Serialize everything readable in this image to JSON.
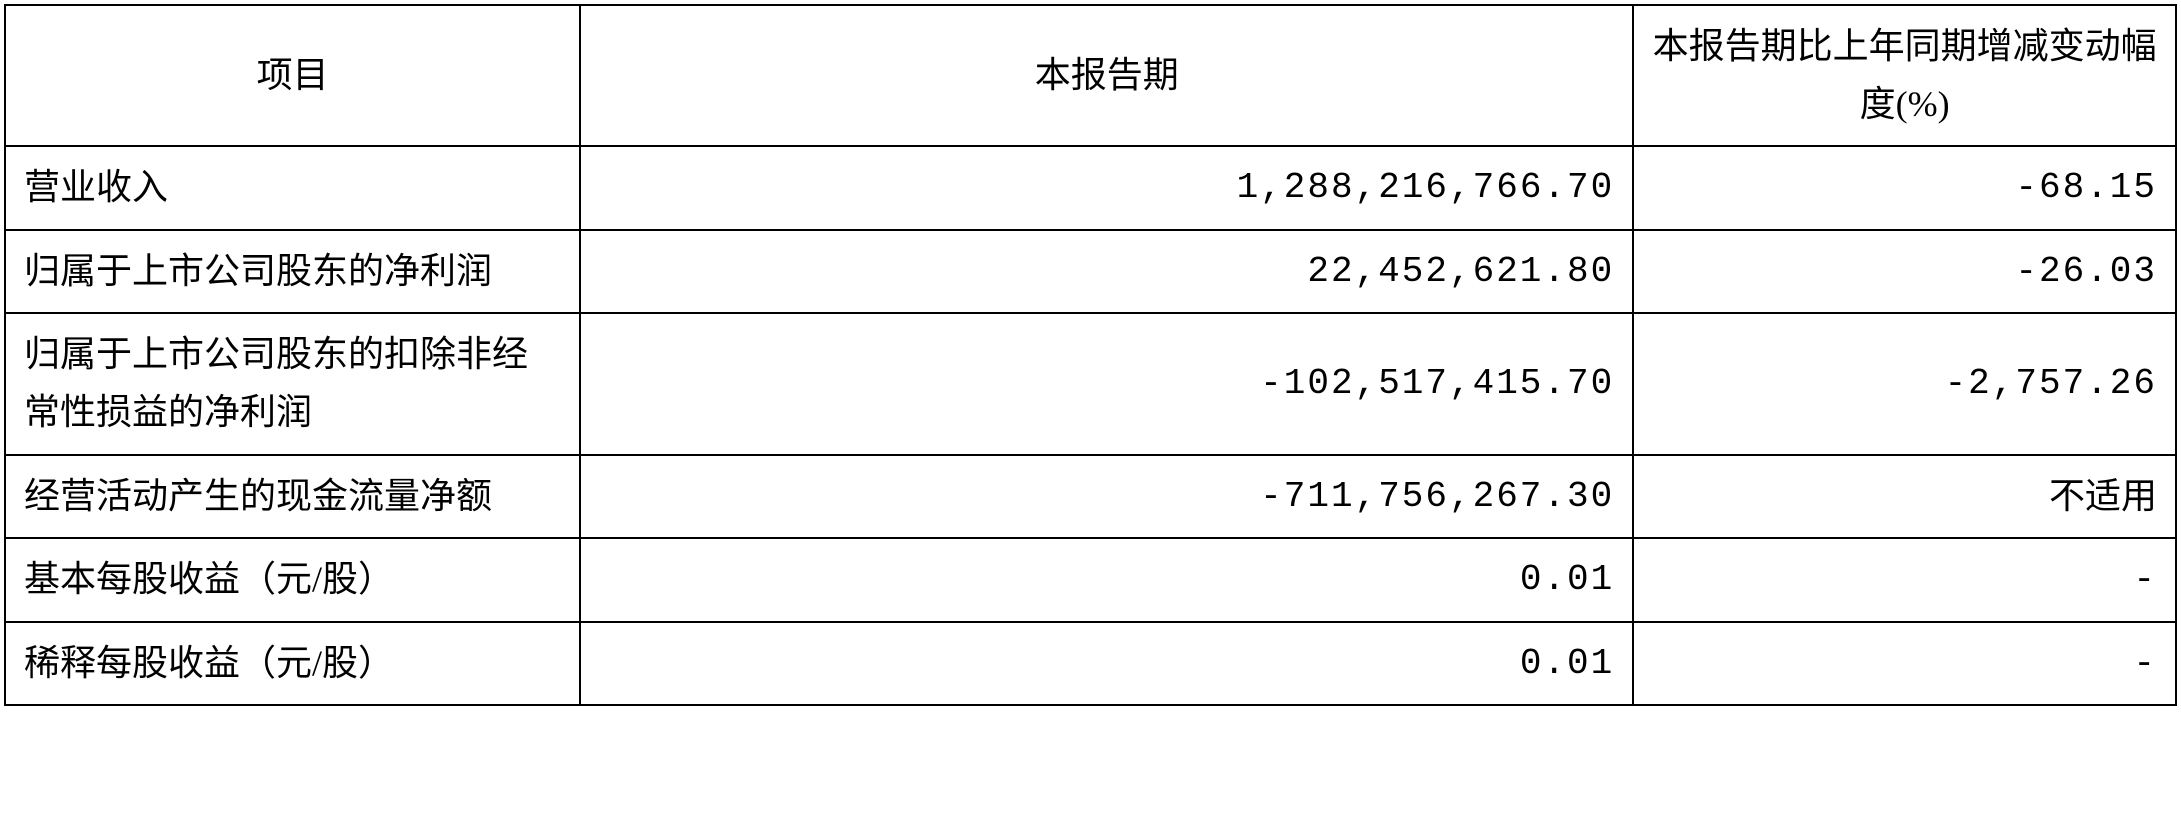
{
  "table": {
    "columns": [
      {
        "label": "项目",
        "class": "col-item",
        "align": "center"
      },
      {
        "label": "本报告期",
        "class": "col-period",
        "align": "center"
      },
      {
        "label": "本报告期比上年同期增减变动幅度(%)",
        "class": "col-change",
        "align": "center"
      }
    ],
    "rows": [
      {
        "label": "营业收入",
        "period": "1,288,216,766.70",
        "change": "-68.15",
        "change_is_numeric": true
      },
      {
        "label": "归属于上市公司股东的净利润",
        "period": "22,452,621.80",
        "change": "-26.03",
        "change_is_numeric": true
      },
      {
        "label": "归属于上市公司股东的扣除非经常性损益的净利润",
        "period": "-102,517,415.70",
        "change": "-2,757.26",
        "change_is_numeric": true
      },
      {
        "label": "经营活动产生的现金流量净额",
        "period": "-711,756,267.30",
        "change": "不适用",
        "change_is_numeric": false
      },
      {
        "label": "基本每股收益（元/股）",
        "period": "0.01",
        "change": "-",
        "change_is_numeric": true
      },
      {
        "label": "稀释每股收益（元/股）",
        "period": "0.01",
        "change": "-",
        "change_is_numeric": true
      }
    ],
    "styling": {
      "border_color": "#000000",
      "border_width": 2,
      "background_color": "#ffffff",
      "text_color": "#000000",
      "font_size": 36,
      "line_height": 1.6,
      "cell_padding_v": 12,
      "cell_padding_h": 18,
      "numeric_font": "Courier New, monospace",
      "numeric_letter_spacing": 2
    }
  }
}
